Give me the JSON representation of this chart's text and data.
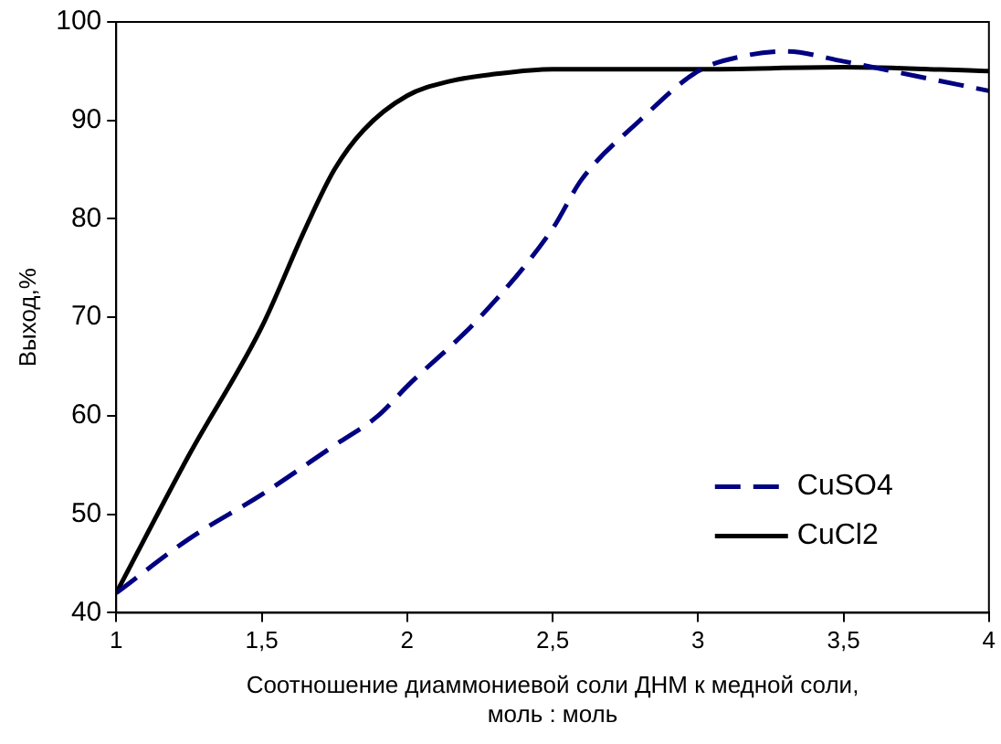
{
  "chart_data": {
    "type": "line",
    "xlabel": "Соотношение диаммониевой соли ДНМ к медной соли, моль : моль",
    "ylabel": "Выход,%",
    "xlim": [
      1,
      4
    ],
    "xticks": [
      {
        "value": 1,
        "label": "1"
      },
      {
        "value": 1.5,
        "label": "1,5"
      },
      {
        "value": 2,
        "label": "2"
      },
      {
        "value": 2.5,
        "label": "2,5"
      },
      {
        "value": 3,
        "label": "3"
      },
      {
        "value": 3.5,
        "label": "3,5"
      },
      {
        "value": 4,
        "label": "4"
      }
    ],
    "ylim": [
      40,
      100
    ],
    "yticks": [
      40,
      50,
      60,
      70,
      80,
      90,
      100
    ],
    "grid": false,
    "legend": "bottom right",
    "marker": "none",
    "series": [
      {
        "name": "CuSO4",
        "color": "#000080",
        "line_style": "dashed",
        "x": [
          1,
          1.25,
          1.5,
          1.75,
          1.9,
          2,
          2.25,
          2.5,
          2.6,
          2.8,
          3,
          3.15,
          3.3,
          3.5,
          3.75,
          4
        ],
        "values": [
          42,
          47.5,
          52,
          57,
          60,
          63,
          70,
          79,
          84,
          90,
          95,
          96.5,
          97,
          96,
          94.5,
          93
        ]
      },
      {
        "name": "CuCl2",
        "color": "#000000",
        "line_style": "solid",
        "x": [
          1,
          1.25,
          1.5,
          1.65,
          1.75,
          1.85,
          2,
          2.15,
          2.3,
          2.5,
          3,
          3.5,
          4
        ],
        "values": [
          42,
          56,
          69,
          79,
          85,
          89,
          92.5,
          94,
          94.7,
          95.2,
          95.2,
          95.4,
          95
        ]
      }
    ]
  }
}
